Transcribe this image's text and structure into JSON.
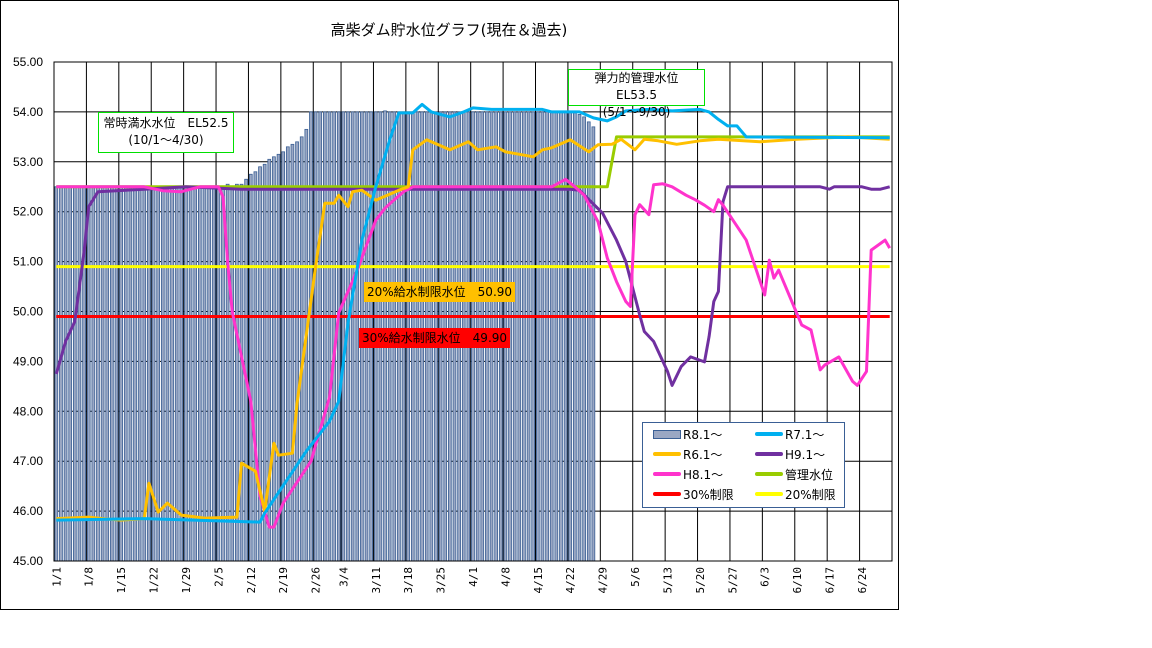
{
  "chart_data": {
    "type": "bar+line",
    "title": "高柴ダム貯水位グラフ(現在＆過去)",
    "ylim": [
      45,
      55
    ],
    "yticks": [
      "55.00",
      "54.00",
      "53.00",
      "52.00",
      "51.00",
      "50.00",
      "49.00",
      "48.00",
      "47.00",
      "46.00",
      "45.00"
    ],
    "x_range": [
      "1/1",
      "6/30"
    ],
    "xticks": [
      "1/1",
      "1/8",
      "1/15",
      "1/22",
      "1/29",
      "2/5",
      "2/12",
      "2/19",
      "2/26",
      "3/4",
      "3/11",
      "3/18",
      "3/25",
      "4/1",
      "4/8",
      "4/15",
      "4/22",
      "4/29",
      "5/6",
      "5/13",
      "5/20",
      "5/27",
      "6/3",
      "6/10",
      "6/17",
      "6/24"
    ],
    "grid": true,
    "legend_position": "bottom-right",
    "bar_series": {
      "name": "R8.1～",
      "start": "1/1",
      "color": "#9aa7c3",
      "border": "#3a5f95",
      "values": [
        52.5,
        52.5,
        52.5,
        52.5,
        52.5,
        52.5,
        52.5,
        52.5,
        52.5,
        52.5,
        52.5,
        52.5,
        52.5,
        52.5,
        52.5,
        52.5,
        52.5,
        52.5,
        52.5,
        52.5,
        52.5,
        52.5,
        52.5,
        52.5,
        52.5,
        52.5,
        52.5,
        52.5,
        52.5,
        52.5,
        52.5,
        52.5,
        52.5,
        52.5,
        52.5,
        52.5,
        52.5,
        52.55,
        52.5,
        52.55,
        52.55,
        52.65,
        52.75,
        52.8,
        52.9,
        52.95,
        53.05,
        53.1,
        53.15,
        53.2,
        53.3,
        53.35,
        53.4,
        53.5,
        53.65,
        54.0,
        54.0,
        54.0,
        54.0,
        54.0,
        54.0,
        54.0,
        54.0,
        54.0,
        54.0,
        54.0,
        54.0,
        54.0,
        54.0,
        54.0,
        54.0,
        54.02,
        54.0,
        54.0,
        54.0,
        54.0,
        54.0,
        54.0,
        54.0,
        54.0,
        54.0,
        54.0,
        54.0,
        54.0,
        54.0,
        54.0,
        54.0,
        54.0,
        54.0,
        54.0,
        54.0,
        54.0,
        54.0,
        54.0,
        54.0,
        54.0,
        54.0,
        54.0,
        54.0,
        54.0,
        54.0,
        54.0,
        54.0,
        54.0,
        54.0,
        54.0,
        54.0,
        54.0,
        54.0,
        54.0,
        54.0,
        54.0,
        53.98,
        53.95,
        53.9,
        53.8,
        53.7
      ]
    },
    "series": [
      {
        "name": "管理水位",
        "color": "#99cc00",
        "points": [
          [
            "1/1",
            52.5
          ],
          [
            "4/30",
            52.5
          ],
          [
            "5/2",
            53.5
          ],
          [
            "6/30",
            53.5
          ]
        ]
      },
      {
        "name": "30%制限",
        "color": "#ff0000",
        "points": [
          [
            "1/1",
            49.9
          ],
          [
            "6/30",
            49.9
          ]
        ]
      },
      {
        "name": "20%制限",
        "color": "#ffff00",
        "points": [
          [
            "1/1",
            50.9
          ],
          [
            "6/30",
            50.9
          ]
        ]
      },
      {
        "name": "H9.1～",
        "color": "#7030a0",
        "points": [
          [
            "1/1",
            48.75
          ],
          [
            "1/3",
            49.4
          ],
          [
            "1/5",
            49.8
          ],
          [
            "1/7",
            51.2
          ],
          [
            "1/8",
            52.1
          ],
          [
            "1/10",
            52.4
          ],
          [
            "1/20",
            52.45
          ],
          [
            "1/29",
            52.5
          ],
          [
            "2/10",
            52.45
          ],
          [
            "3/1",
            52.45
          ],
          [
            "4/22",
            52.45
          ],
          [
            "4/24",
            52.43
          ],
          [
            "4/29",
            51.97
          ],
          [
            "5/2",
            51.43
          ],
          [
            "5/4",
            51.0
          ],
          [
            "5/7",
            49.93
          ],
          [
            "5/8",
            49.6
          ],
          [
            "5/10",
            49.4
          ],
          [
            "5/13",
            48.8
          ],
          [
            "5/14",
            48.52
          ],
          [
            "5/16",
            48.9
          ],
          [
            "5/18",
            49.09
          ],
          [
            "5/21",
            48.99
          ],
          [
            "5/22",
            49.5
          ],
          [
            "5/23",
            50.2
          ],
          [
            "5/24",
            50.4
          ],
          [
            "5/25",
            52.2
          ],
          [
            "5/26",
            52.5
          ],
          [
            "6/15",
            52.5
          ],
          [
            "6/17",
            52.45
          ],
          [
            "6/18",
            52.5
          ],
          [
            "6/24",
            52.5
          ],
          [
            "6/26",
            52.45
          ],
          [
            "6/28",
            52.45
          ],
          [
            "6/30",
            52.5
          ]
        ]
      },
      {
        "name": "H8.1～",
        "color": "#ff33cc",
        "points": [
          [
            "1/1",
            52.5
          ],
          [
            "1/20",
            52.5
          ],
          [
            "1/24",
            52.42
          ],
          [
            "1/28",
            52.4
          ],
          [
            "2/1",
            52.5
          ],
          [
            "2/5",
            52.5
          ],
          [
            "2/6",
            52.3
          ],
          [
            "2/7",
            51.0
          ],
          [
            "2/8",
            50.0
          ],
          [
            "2/12",
            48.2
          ],
          [
            "2/14",
            46.3
          ],
          [
            "2/16",
            45.68
          ],
          [
            "2/17",
            45.68
          ],
          [
            "2/19",
            46.16
          ],
          [
            "2/25",
            47.0
          ],
          [
            "3/1",
            48.28
          ],
          [
            "3/3",
            49.97
          ],
          [
            "3/7",
            50.83
          ],
          [
            "3/11",
            51.83
          ],
          [
            "3/13",
            52.07
          ],
          [
            "3/15",
            52.24
          ],
          [
            "3/17",
            52.4
          ],
          [
            "3/19",
            52.5
          ],
          [
            "4/18",
            52.5
          ],
          [
            "4/21",
            52.65
          ],
          [
            "4/23",
            52.5
          ],
          [
            "4/25",
            52.33
          ],
          [
            "4/28",
            51.8
          ],
          [
            "4/30",
            51.07
          ],
          [
            "5/2",
            50.6
          ],
          [
            "5/4",
            50.2
          ],
          [
            "5/5",
            50.1
          ],
          [
            "5/6",
            51.94
          ],
          [
            "5/7",
            52.14
          ],
          [
            "5/9",
            51.94
          ],
          [
            "5/10",
            52.54
          ],
          [
            "5/12",
            52.56
          ],
          [
            "5/14",
            52.5
          ],
          [
            "5/17",
            52.33
          ],
          [
            "5/19",
            52.24
          ],
          [
            "5/21",
            52.13
          ],
          [
            "5/23",
            52.0
          ],
          [
            "5/24",
            52.24
          ],
          [
            "5/25",
            52.13
          ],
          [
            "5/30",
            51.43
          ],
          [
            "6/3",
            50.33
          ],
          [
            "6/4",
            51.03
          ],
          [
            "6/5",
            50.67
          ],
          [
            "6/6",
            50.83
          ],
          [
            "6/11",
            49.73
          ],
          [
            "6/13",
            49.63
          ],
          [
            "6/15",
            48.83
          ],
          [
            "6/16",
            48.93
          ],
          [
            "6/19",
            49.09
          ],
          [
            "6/22",
            48.6
          ],
          [
            "6/23",
            48.52
          ],
          [
            "6/25",
            48.8
          ],
          [
            "6/26",
            51.23
          ],
          [
            "6/29",
            51.43
          ],
          [
            "6/30",
            51.27
          ]
        ]
      },
      {
        "name": "R6.1～",
        "color": "#ffc000",
        "points": [
          [
            "1/1",
            45.85
          ],
          [
            "1/8",
            45.88
          ],
          [
            "1/11",
            45.85
          ],
          [
            "1/15",
            45.82
          ],
          [
            "1/20",
            45.85
          ],
          [
            "1/21",
            46.56
          ],
          [
            "1/23",
            45.98
          ],
          [
            "1/25",
            46.16
          ],
          [
            "1/28",
            45.92
          ],
          [
            "2/2",
            45.86
          ],
          [
            "2/9",
            45.88
          ],
          [
            "2/10",
            46.96
          ],
          [
            "2/13",
            46.8
          ],
          [
            "2/15",
            46.0
          ],
          [
            "2/17",
            47.36
          ],
          [
            "2/18",
            47.12
          ],
          [
            "2/21",
            47.16
          ],
          [
            "2/22",
            48.17
          ],
          [
            "2/26",
            50.9
          ],
          [
            "2/28",
            52.17
          ],
          [
            "3/2",
            52.17
          ],
          [
            "3/3",
            52.33
          ],
          [
            "3/5",
            52.1
          ],
          [
            "3/6",
            52.4
          ],
          [
            "3/8",
            52.43
          ],
          [
            "3/11",
            52.23
          ],
          [
            "3/16",
            52.43
          ],
          [
            "3/18",
            52.5
          ],
          [
            "3/19",
            53.24
          ],
          [
            "3/22",
            53.44
          ],
          [
            "3/27",
            53.24
          ],
          [
            "3/31",
            53.4
          ],
          [
            "4/2",
            53.24
          ],
          [
            "4/6",
            53.3
          ],
          [
            "4/8",
            53.2
          ],
          [
            "4/14",
            53.1
          ],
          [
            "4/16",
            53.24
          ],
          [
            "4/18",
            53.28
          ],
          [
            "4/22",
            53.44
          ],
          [
            "4/26",
            53.2
          ],
          [
            "4/28",
            53.34
          ],
          [
            "5/1",
            53.35
          ],
          [
            "5/3",
            53.45
          ],
          [
            "5/6",
            53.24
          ],
          [
            "5/8",
            53.45
          ],
          [
            "5/11",
            53.42
          ],
          [
            "5/15",
            53.35
          ],
          [
            "5/20",
            53.42
          ],
          [
            "5/24",
            53.45
          ],
          [
            "6/2",
            53.4
          ],
          [
            "6/10",
            53.45
          ],
          [
            "6/21",
            53.5
          ],
          [
            "6/30",
            53.45
          ]
        ]
      },
      {
        "name": "R7.1～",
        "color": "#00b0f0",
        "points": [
          [
            "1/1",
            45.82
          ],
          [
            "1/20",
            45.85
          ],
          [
            "2/14",
            45.78
          ],
          [
            "2/15",
            45.96
          ],
          [
            "2/24",
            47.2
          ],
          [
            "3/1",
            47.8
          ],
          [
            "3/3",
            48.2
          ],
          [
            "3/5",
            49.77
          ],
          [
            "3/8",
            51.43
          ],
          [
            "3/11",
            52.5
          ],
          [
            "3/14",
            53.44
          ],
          [
            "3/16",
            53.98
          ],
          [
            "3/19",
            53.98
          ],
          [
            "3/21",
            54.15
          ],
          [
            "3/23",
            54.0
          ],
          [
            "3/27",
            53.9
          ],
          [
            "3/30",
            54.0
          ],
          [
            "4/1",
            54.08
          ],
          [
            "4/5",
            54.05
          ],
          [
            "4/12",
            54.05
          ],
          [
            "4/16",
            54.05
          ],
          [
            "4/18",
            54.0
          ],
          [
            "4/24",
            54.0
          ],
          [
            "4/27",
            53.88
          ],
          [
            "4/30",
            53.82
          ],
          [
            "5/2",
            53.9
          ],
          [
            "5/4",
            54.02
          ],
          [
            "5/9",
            54.05
          ],
          [
            "5/14",
            54.02
          ],
          [
            "5/20",
            54.05
          ],
          [
            "5/22",
            54.0
          ],
          [
            "5/24",
            53.85
          ],
          [
            "5/26",
            53.72
          ],
          [
            "5/28",
            53.72
          ],
          [
            "5/30",
            53.5
          ],
          [
            "6/30",
            53.48
          ]
        ]
      }
    ],
    "annotations": {
      "normal_full": [
        "常時満水水位　EL52.5",
        "(10/1～4/30)"
      ],
      "flexible": [
        "弾力的管理水位　EL53.5",
        "(5/1～9/30)"
      ],
      "limit20": "20%給水制限水位　50.90",
      "limit30": "30%給水制限水位　49.90"
    },
    "legend": [
      {
        "label": "R8.1～",
        "color": "#9aa7c3",
        "kind": "bar"
      },
      {
        "label": "R7.1～",
        "color": "#00b0f0",
        "kind": "line"
      },
      {
        "label": "R6.1～",
        "color": "#ffc000",
        "kind": "line"
      },
      {
        "label": "H9.1～",
        "color": "#7030a0",
        "kind": "line"
      },
      {
        "label": "H8.1～",
        "color": "#ff33cc",
        "kind": "line"
      },
      {
        "label": "管理水位",
        "color": "#99cc00",
        "kind": "line"
      },
      {
        "label": "30%制限",
        "color": "#ff0000",
        "kind": "line"
      },
      {
        "label": "20%制限",
        "color": "#ffff00",
        "kind": "line"
      }
    ]
  }
}
